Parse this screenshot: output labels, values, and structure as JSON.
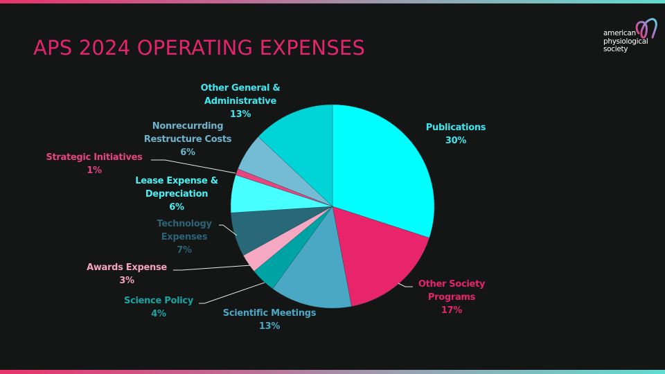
{
  "title": "APS 2024 OPERATING EXPENSES",
  "logo": {
    "line1": "american",
    "line2": "physiological",
    "line3": "society",
    "mark_icon": "aps-loop-icon"
  },
  "colors": {
    "background": "#141515",
    "title": "#e3256b",
    "gradient_start": "#e8336b",
    "gradient_end": "#5fdcd0"
  },
  "chart_data": {
    "type": "pie",
    "title": "APS 2024 OPERATING EXPENSES",
    "start_angle_deg": 0,
    "direction": "clockwise",
    "unit": "%",
    "slices": [
      {
        "name": "Publications",
        "value": 30,
        "color": "#00ffff",
        "label_line1": "Publications",
        "label_line2": "",
        "pct": "30%",
        "label_color": "#3ee6ee"
      },
      {
        "name": "Other Society Programs",
        "value": 17,
        "color": "#e8256a",
        "label_line1": "Other Society",
        "label_line2": "Programs",
        "pct": "17%",
        "label_color": "#e3256b"
      },
      {
        "name": "Scientific Meetings",
        "value": 13,
        "color": "#4aa8c4",
        "label_line1": "Scientific Meetings",
        "label_line2": "",
        "pct": "13%",
        "label_color": "#4aa8c4"
      },
      {
        "name": "Science Policy",
        "value": 4,
        "color": "#00a3a3",
        "label_line1": "Science Policy",
        "label_line2": "",
        "pct": "4%",
        "label_color": "#1aa3a3"
      },
      {
        "name": "Awards Expense",
        "value": 3,
        "color": "#f5a8c2",
        "label_line1": "Awards Expense",
        "label_line2": "",
        "pct": "3%",
        "label_color": "#f3a3bf"
      },
      {
        "name": "Technology Expenses",
        "value": 7,
        "color": "#286878",
        "label_line1": "Technology",
        "label_line2": "Expenses",
        "pct": "7%",
        "label_color": "#2b6478"
      },
      {
        "name": "Lease Expense & Depreciation",
        "value": 6,
        "color": "#48ffff",
        "label_line1": "Lease Expense &",
        "label_line2": "Depreciation",
        "pct": "6%",
        "label_color": "#48f0f4"
      },
      {
        "name": "Strategic Initiatives",
        "value": 1,
        "color": "#e8447e",
        "label_line1": "Strategic Initiatives",
        "label_line2": "",
        "pct": "1%",
        "label_color": "#e4457e"
      },
      {
        "name": "Nonrecurrding Restructure Costs",
        "value": 6,
        "color": "#74bcd4",
        "label_line1": "Nonrecurrding",
        "label_line2": "Restructure Costs",
        "pct": "6%",
        "label_color": "#6fb4cc"
      },
      {
        "name": "Other General & Administrative",
        "value": 13,
        "color": "#00d4d6",
        "label_line1": "Other General &",
        "label_line2": "Administrative",
        "pct": "13%",
        "label_color": "#3ee6ee"
      }
    ],
    "legend": "none",
    "data_labels": "category name and percentage, outside slices with leader lines"
  }
}
